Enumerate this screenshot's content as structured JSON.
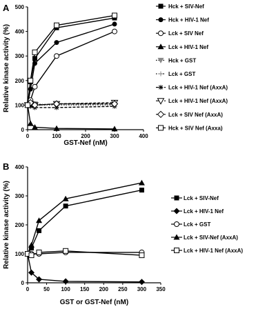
{
  "chart_data": [
    {
      "panel_label": "A",
      "type": "line",
      "xlabel": "GST-Nef  (nM)",
      "ylabel": "Relative kinase activity  (%)",
      "xlim": [
        0,
        400
      ],
      "ylim": [
        0,
        500
      ],
      "xticks": [
        0,
        100,
        200,
        300,
        400
      ],
      "yticks": [
        0,
        100,
        200,
        300,
        400,
        500
      ],
      "legend_position": "right",
      "series": [
        {
          "name": "Hck + SIV-Nef",
          "marker": "filled-square",
          "dash": "solid",
          "x": [
            0,
            10,
            25,
            100,
            300
          ],
          "y": [
            100,
            195,
            290,
            415,
            455
          ]
        },
        {
          "name": "Hck + HIV-1 Nef",
          "marker": "filled-circle",
          "dash": "solid",
          "x": [
            0,
            10,
            25,
            100,
            300
          ],
          "y": [
            100,
            165,
            270,
            355,
            430
          ]
        },
        {
          "name": "Lck + SIV Nef",
          "marker": "open-circle",
          "dash": "solid",
          "x": [
            0,
            10,
            25,
            100,
            300
          ],
          "y": [
            100,
            120,
            175,
            300,
            400
          ]
        },
        {
          "name": "Lck + HIV-1 Nef",
          "marker": "filled-triangle",
          "dash": "solid",
          "x": [
            0,
            10,
            25,
            100,
            300
          ],
          "y": [
            100,
            25,
            10,
            5,
            3
          ]
        },
        {
          "name": "Hck + GST",
          "marker": "gray-triangle-down",
          "dash": "dotted",
          "x": [
            0,
            10,
            25,
            100,
            300
          ],
          "y": [
            100,
            100,
            105,
            100,
            100
          ]
        },
        {
          "name": "Lck + GST",
          "marker": "plus",
          "dash": "dotted",
          "x": [
            0,
            10,
            25,
            100,
            300
          ],
          "y": [
            100,
            105,
            100,
            100,
            105
          ]
        },
        {
          "name": "Lck + HIV-1 Nef (AxxA)",
          "marker": "asterisk",
          "dash": "dashed",
          "x": [
            0,
            10,
            25,
            100,
            300
          ],
          "y": [
            100,
            95,
            90,
            90,
            95
          ]
        },
        {
          "name": "Lck + HIV-1 Nef (AxxA)",
          "marker": "open-triangle-down",
          "dash": "dashed",
          "x": [
            0,
            10,
            25,
            100,
            300
          ],
          "y": [
            100,
            105,
            100,
            105,
            110
          ]
        },
        {
          "name": "Lck + SIV Nef (AxxA)",
          "marker": "open-diamond",
          "dash": "dashed",
          "x": [
            0,
            10,
            25,
            100,
            300
          ],
          "y": [
            100,
            110,
            100,
            105,
            105
          ]
        },
        {
          "name": "Hck + SIV Nef (Axxa)",
          "marker": "open-square",
          "dash": "solid",
          "x": [
            0,
            10,
            25,
            100,
            300
          ],
          "y": [
            100,
            200,
            315,
            425,
            465
          ]
        }
      ]
    },
    {
      "panel_label": "B",
      "type": "line",
      "xlabel": "GST  or  GST-Nef  (nM)",
      "ylabel": "Relative kinase activity  (%)",
      "xlim": [
        0,
        350
      ],
      "ylim": [
        0,
        400
      ],
      "xticks": [
        0,
        50,
        100,
        150,
        200,
        250,
        300,
        350
      ],
      "yticks": [
        0,
        100,
        200,
        300,
        400
      ],
      "legend_position": "right",
      "series": [
        {
          "name": "Lck + SIV-Nef",
          "marker": "filled-square",
          "dash": "solid",
          "x": [
            0,
            10,
            30,
            100,
            300
          ],
          "y": [
            100,
            120,
            180,
            265,
            320
          ]
        },
        {
          "name": "Lck + HIV-1 Nef",
          "marker": "filled-diamond",
          "dash": "solid",
          "x": [
            0,
            10,
            30,
            100,
            300
          ],
          "y": [
            100,
            35,
            12,
            5,
            3
          ]
        },
        {
          "name": "Lck + GST",
          "marker": "open-circle",
          "dash": "solid",
          "x": [
            0,
            10,
            30,
            100,
            300
          ],
          "y": [
            100,
            100,
            100,
            105,
            105
          ]
        },
        {
          "name": "Lck + SIV-Nef (AxxA)",
          "marker": "filled-triangle",
          "dash": "solid",
          "x": [
            0,
            10,
            30,
            100,
            300
          ],
          "y": [
            100,
            130,
            215,
            290,
            345
          ]
        },
        {
          "name": "Lck + HIV-1 Nef (AxxA)",
          "marker": "open-square",
          "dash": "solid",
          "x": [
            0,
            10,
            30,
            100,
            300
          ],
          "y": [
            100,
            95,
            105,
            110,
            95
          ]
        }
      ]
    }
  ]
}
